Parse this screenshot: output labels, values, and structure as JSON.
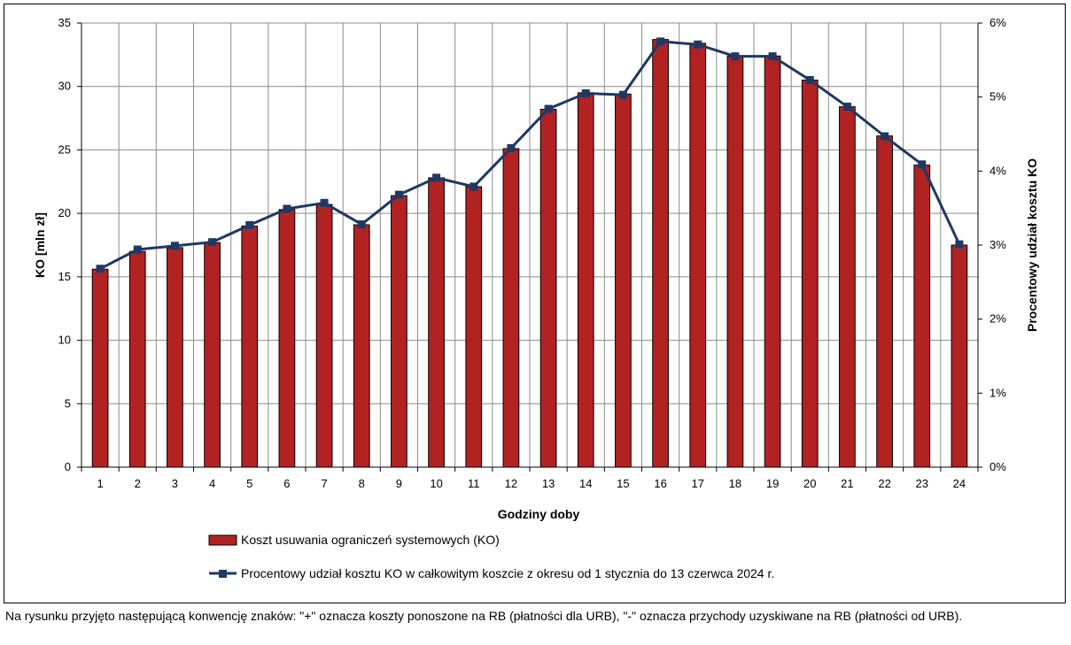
{
  "chart_data": {
    "type": "bar+line",
    "categories": [
      "1",
      "2",
      "3",
      "4",
      "5",
      "6",
      "7",
      "8",
      "9",
      "10",
      "11",
      "12",
      "13",
      "14",
      "15",
      "16",
      "17",
      "18",
      "19",
      "20",
      "21",
      "22",
      "23",
      "24"
    ],
    "series": [
      {
        "name": "Koszt usuwania ograniczeń systemowych (KO)",
        "type": "bar",
        "axis": "left",
        "color": "#B22222",
        "values": [
          15.6,
          17.0,
          17.3,
          17.7,
          19.0,
          20.3,
          20.7,
          19.1,
          21.4,
          22.8,
          22.1,
          25.1,
          28.2,
          29.5,
          29.4,
          33.7,
          33.4,
          32.4,
          32.4,
          30.5,
          28.4,
          26.1,
          23.8,
          17.5
        ]
      },
      {
        "name": "Procentowy udział kosztu KO w całkowitym koszcie z okresu od 1 stycznia do 13 czerwca 2024 r.",
        "type": "line",
        "axis": "right",
        "color": "#1F3864",
        "values": [
          2.68,
          2.94,
          2.99,
          3.04,
          3.27,
          3.49,
          3.57,
          3.28,
          3.68,
          3.91,
          3.79,
          4.31,
          4.84,
          5.05,
          5.03,
          5.75,
          5.71,
          5.55,
          5.55,
          5.23,
          4.87,
          4.47,
          4.09,
          3.01
        ]
      }
    ],
    "xlabel": "Godziny doby",
    "ylabel": "KO [mln zł]",
    "y2label": "Procentowy udział kosztu KO",
    "ylim": [
      0,
      35
    ],
    "y2lim": [
      0,
      6
    ],
    "yticks": [
      "0",
      "5",
      "10",
      "15",
      "20",
      "25",
      "30",
      "35"
    ],
    "y2ticks": [
      "0%",
      "1%",
      "2%",
      "3%",
      "4%",
      "5%",
      "6%"
    ],
    "grid": true,
    "legend": "bottom-center"
  },
  "footnote": "Na rysunku przyjęto następującą konwencję znaków: \"+\" oznacza koszty ponoszone na RB (płatności dla URB), \"-\" oznacza przychody uzyskiwane na RB (płatności od URB)."
}
